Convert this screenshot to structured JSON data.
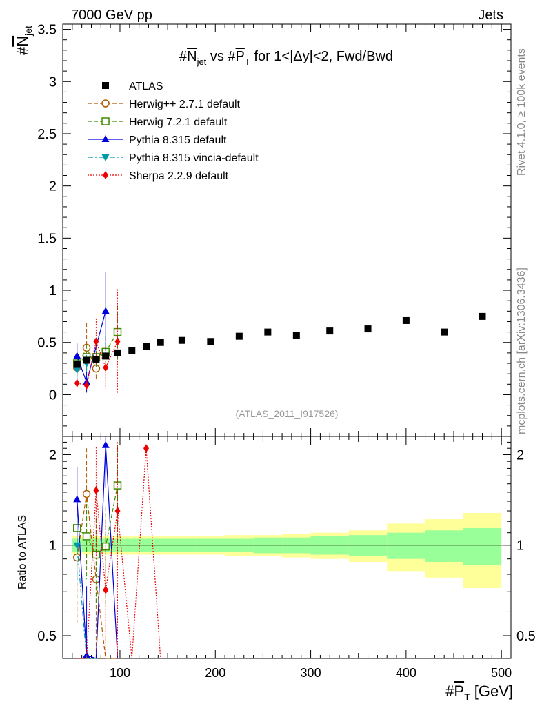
{
  "header": {
    "left": "7000 GeV pp",
    "right": "Jets",
    "analysis_tag": "(ATLAS_2011_I917526)",
    "side_note_top": "Rivet 4.1.0, ≥ 100k events",
    "side_note_bottom": "mcplots.cern.ch [arXiv:1306.3436]"
  },
  "chart_data": {
    "type": "scatter",
    "title": "#N_jet vs #P_T for 1<|Δy|<2, Fwd/Bwd",
    "title_parts": {
      "a": "#",
      "b": "N",
      "b_sub": "jet",
      "c": " vs #",
      "d": "P",
      "d_sub": "T",
      "e": " for 1<|Δy|<2, Fwd/Bwd"
    },
    "xlabel": "#P_T [GeV]",
    "xlabel_parts": {
      "a": "#",
      "b": "P",
      "b_sub": "T",
      "c": " [GeV]"
    },
    "ylabel": "#N_jet",
    "ylabel_parts": {
      "a": "#",
      "b": "N",
      "b_sub": "jet"
    },
    "ratio_ylabel": "Ratio to ATLAS",
    "xlim": [
      40,
      510
    ],
    "ylim": [
      -0.4,
      3.55
    ],
    "ratio_ylim": [
      0.42,
      2.3
    ],
    "xticks": [
      100,
      200,
      300,
      400,
      500
    ],
    "xtick_labels": [
      "100",
      "200",
      "300",
      "400",
      "500"
    ],
    "yticks": [
      0,
      0.5,
      1,
      1.5,
      2,
      2.5,
      3,
      3.5
    ],
    "ytick_labels": [
      "0",
      "0.5",
      "1",
      "1.5",
      "2",
      "2.5",
      "3",
      "3.5"
    ],
    "ratio_yticks": [
      0.5,
      1,
      2
    ],
    "ratio_ytick_labels": [
      "0.5",
      "1",
      "2"
    ],
    "data": {
      "name": "ATLAS",
      "bin_edges": [
        50,
        60,
        70,
        80,
        90,
        105,
        120,
        135,
        150,
        180,
        210,
        240,
        270,
        300,
        340,
        380,
        420,
        460,
        500
      ],
      "x": [
        55,
        65,
        75,
        85,
        97.5,
        112.5,
        127.5,
        142.5,
        165,
        195,
        225,
        255,
        285,
        320,
        360,
        400,
        440,
        480
      ],
      "y": [
        0.29,
        0.33,
        0.34,
        0.37,
        0.4,
        0.42,
        0.46,
        0.5,
        0.52,
        0.51,
        0.56,
        0.6,
        0.57,
        0.61,
        0.63,
        0.71,
        0.6,
        0.75
      ],
      "band_stat": [
        0.05,
        0.05,
        0.05,
        0.05,
        0.05,
        0.05,
        0.05,
        0.05,
        0.05,
        0.05,
        0.05,
        0.06,
        0.06,
        0.07,
        0.08,
        0.1,
        0.12,
        0.14
      ],
      "band_total": [
        0.07,
        0.07,
        0.07,
        0.07,
        0.07,
        0.07,
        0.07,
        0.07,
        0.07,
        0.07,
        0.08,
        0.08,
        0.09,
        0.1,
        0.12,
        0.18,
        0.22,
        0.28
      ]
    },
    "series": [
      {
        "name": "Herwig++ 2.7.1 default",
        "color": "#b05b00",
        "dash": "6,3",
        "marker": "circle-open",
        "x": [
          55,
          65,
          75
        ],
        "y": [
          0.26,
          0.45,
          0.25
        ],
        "err": [
          0.13,
          0.24,
          0.12
        ],
        "ratio_x": [
          55,
          65,
          75,
          85,
          97.5
        ],
        "ratio_y": [
          0.91,
          1.48,
          0.77,
          0.35,
          0.2
        ],
        "ratio_err": [
          0.36,
          0.62,
          0.35,
          0,
          0
        ]
      },
      {
        "name": "Herwig 7.2.1 default",
        "color": "#3d8c00",
        "dash": "6,3",
        "marker": "square-open",
        "x": [
          55,
          65,
          75,
          85,
          97.5
        ],
        "y": [
          0.3,
          0.36,
          0.36,
          0.41,
          0.6
        ],
        "err": [
          0.08,
          0.12,
          0.12,
          0.15,
          0.25
        ],
        "ratio_x": [
          55,
          65,
          75,
          85,
          97.5
        ],
        "ratio_y": [
          1.14,
          1.07,
          0.93,
          0.99,
          1.58
        ],
        "ratio_err": [
          0.2,
          0.3,
          0.3,
          0.35,
          0.55
        ]
      },
      {
        "name": "Pythia 8.315 default",
        "color": "#0000dd",
        "dash": "",
        "marker": "triangle-up",
        "x": [
          55,
          65,
          85
        ],
        "y": [
          0.37,
          0.12,
          0.8
        ],
        "err": [
          0.12,
          0.1,
          0.38
        ],
        "ratio_x": [
          55,
          65,
          75,
          85,
          97.5
        ],
        "ratio_y": [
          1.42,
          0.43,
          0.3,
          2.15,
          0.3
        ],
        "ratio_err": [
          0.4,
          0.3,
          0,
          0.6,
          0
        ]
      },
      {
        "name": "Pythia 8.315 vincia-default",
        "color": "#0099aa",
        "dash": "8,3,2,3",
        "marker": "triangle-down",
        "x": [
          55,
          65
        ],
        "y": [
          0.24,
          0.3
        ],
        "err": [
          0.08,
          0.08
        ],
        "ratio_x": [
          55,
          65,
          75
        ],
        "ratio_y": [
          1.0,
          0.3,
          0.3
        ],
        "ratio_err": [
          0.25,
          0,
          0
        ]
      },
      {
        "name": "Sherpa 2.2.9 default",
        "color": "#ee0000",
        "dash": "2,2",
        "marker": "diamond",
        "x": [
          55,
          65,
          75,
          85,
          97.5
        ],
        "y": [
          0.11,
          0.09,
          0.51,
          0.26,
          0.51
        ],
        "err": [
          0.05,
          0.05,
          0.22,
          0.2,
          0.5
        ],
        "ratio_x": [
          55,
          65,
          75,
          85,
          97.5,
          112.5,
          127.5,
          142.5
        ],
        "ratio_y": [
          0.3,
          0.3,
          1.52,
          0.71,
          1.3,
          0.3,
          2.1,
          0.3
        ],
        "ratio_err": [
          0,
          0,
          0.6,
          0.5,
          0.9,
          0,
          0,
          0
        ]
      }
    ],
    "legend_placement": "top-left"
  }
}
